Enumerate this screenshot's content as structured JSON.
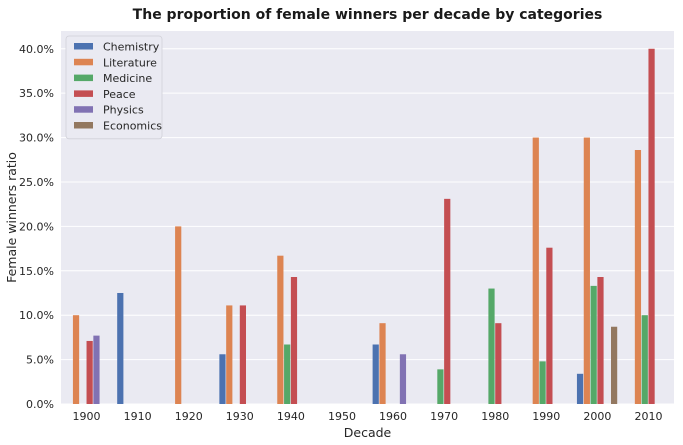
{
  "chart_data": {
    "type": "bar",
    "title": "The proportion of female winners per decade by categories",
    "xlabel": "Decade",
    "ylabel": "Female winners ratio",
    "ylim": [
      0,
      0.42
    ],
    "yticks": [
      0,
      0.05,
      0.1,
      0.15,
      0.2,
      0.25,
      0.3,
      0.35,
      0.4
    ],
    "ytick_labels": [
      "0.0%",
      "5.0%",
      "10.0%",
      "15.0%",
      "20.0%",
      "25.0%",
      "30.0%",
      "35.0%",
      "40.0%"
    ],
    "grid": true,
    "legend_position": "top-left",
    "categories": [
      "1900",
      "1910",
      "1920",
      "1930",
      "1940",
      "1950",
      "1960",
      "1970",
      "1980",
      "1990",
      "2000",
      "2010"
    ],
    "series": [
      {
        "name": "Chemistry",
        "color": "#4c72b0",
        "values": [
          null,
          0.125,
          null,
          0.056,
          null,
          null,
          0.067,
          null,
          null,
          null,
          0.034,
          null
        ]
      },
      {
        "name": "Literature",
        "color": "#dd8452",
        "values": [
          0.1,
          null,
          0.2,
          0.111,
          0.167,
          null,
          0.091,
          null,
          null,
          0.3,
          0.3,
          0.286
        ]
      },
      {
        "name": "Medicine",
        "color": "#55a868",
        "values": [
          null,
          null,
          null,
          null,
          0.067,
          null,
          null,
          0.039,
          0.13,
          0.048,
          0.133,
          0.1
        ]
      },
      {
        "name": "Peace",
        "color": "#c44e52",
        "values": [
          0.071,
          null,
          null,
          0.111,
          0.143,
          null,
          null,
          0.231,
          0.091,
          0.176,
          0.143,
          0.4
        ]
      },
      {
        "name": "Physics",
        "color": "#8172b3",
        "values": [
          0.077,
          null,
          null,
          null,
          null,
          null,
          0.056,
          null,
          null,
          null,
          null,
          null
        ]
      },
      {
        "name": "Economics",
        "color": "#937860",
        "values": [
          null,
          null,
          null,
          null,
          null,
          null,
          null,
          null,
          null,
          null,
          0.087,
          null
        ]
      }
    ]
  }
}
